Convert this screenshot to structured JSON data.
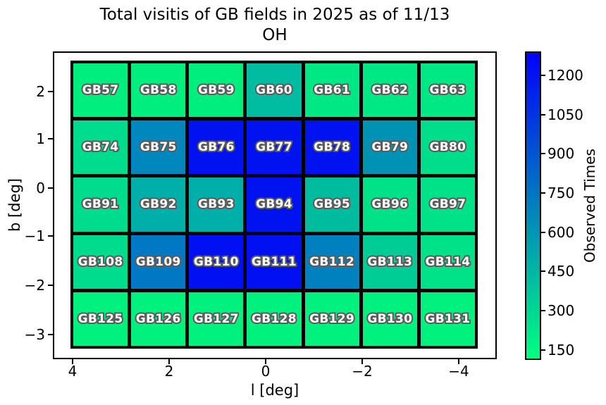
{
  "figure": {
    "title_line1": "Total visitis of GB fields in 2025 as of 11/13",
    "title_line2": "OH"
  },
  "axes": {
    "xlabel": "l [deg]",
    "ylabel": "b [deg]",
    "x_ticks": [
      "4",
      "2",
      "0",
      "−2",
      "−4"
    ],
    "y_ticks": [
      "2",
      "1",
      "0",
      "−1",
      "−2",
      "−3"
    ]
  },
  "colorbar": {
    "label": "Observed Times",
    "ticks": [
      "1200",
      "1050",
      "900",
      "750",
      "600",
      "450",
      "300",
      "150"
    ],
    "gradient_top_color": "#0101fb",
    "gradient_bottom_color": "#00ff80"
  },
  "chart_data": {
    "type": "heatmap",
    "title": "Total visitis of GB fields in 2025 as of 11/13 OH",
    "xlabel": "l [deg]",
    "ylabel": "b [deg]",
    "x_tick_labels": [
      4,
      2,
      0,
      -2,
      -4
    ],
    "y_tick_labels": [
      2,
      1,
      0,
      -1,
      -2,
      -3
    ],
    "colormap": "winter_r",
    "colorbar_label": "Observed Times",
    "colorbar_tick_values": [
      150,
      300,
      450,
      600,
      750,
      900,
      1050,
      1200
    ],
    "colorbar_range_estimate": [
      110,
      1290
    ],
    "values_are_estimated_from_colorbar": true,
    "rows": [
      {
        "b_approx": 2,
        "cells": [
          {
            "label": "GB57",
            "color": "#00ee7e",
            "observed_times_est": 190
          },
          {
            "label": "GB58",
            "color": "#00ee7e",
            "observed_times_est": 190
          },
          {
            "label": "GB59",
            "color": "#00ee7e",
            "observed_times_est": 190
          },
          {
            "label": "GB60",
            "color": "#00bda2",
            "observed_times_est": 415
          },
          {
            "label": "GB61",
            "color": "#00e884",
            "observed_times_est": 215
          },
          {
            "label": "GB62",
            "color": "#00e884",
            "observed_times_est": 215
          },
          {
            "label": "GB63",
            "color": "#00e884",
            "observed_times_est": 215
          }
        ]
      },
      {
        "b_approx": 1,
        "cells": [
          {
            "label": "GB74",
            "color": "#00dc8e",
            "observed_times_est": 270
          },
          {
            "label": "GB75",
            "color": "#0087be",
            "observed_times_est": 665
          },
          {
            "label": "GB76",
            "color": "#0012f0",
            "observed_times_est": 1210
          },
          {
            "label": "GB77",
            "color": "#0012f0",
            "observed_times_est": 1210
          },
          {
            "label": "GB78",
            "color": "#0012f0",
            "observed_times_est": 1210
          },
          {
            "label": "GB79",
            "color": "#0092b5",
            "observed_times_est": 615
          },
          {
            "label": "GB80",
            "color": "#00dd8b",
            "observed_times_est": 265
          }
        ]
      },
      {
        "b_approx": 0,
        "cells": [
          {
            "label": "GB91",
            "color": "#00dc8e",
            "observed_times_est": 270
          },
          {
            "label": "GB92",
            "color": "#00aeaa",
            "observed_times_est": 485
          },
          {
            "label": "GB93",
            "color": "#00aeaa",
            "observed_times_est": 485
          },
          {
            "label": "GB94",
            "color": "#0012f0",
            "observed_times_est": 1210
          },
          {
            "label": "GB95",
            "color": "#00bc9e",
            "observed_times_est": 420
          },
          {
            "label": "GB96",
            "color": "#00e288",
            "observed_times_est": 245
          },
          {
            "label": "GB97",
            "color": "#00e288",
            "observed_times_est": 245
          }
        ]
      },
      {
        "b_approx": -1.5,
        "cells": [
          {
            "label": "GB108",
            "color": "#00dc8e",
            "observed_times_est": 270
          },
          {
            "label": "GB109",
            "color": "#0078c4",
            "observed_times_est": 735
          },
          {
            "label": "GB110",
            "color": "#0010f2",
            "observed_times_est": 1215
          },
          {
            "label": "GB111",
            "color": "#0010f2",
            "observed_times_est": 1215
          },
          {
            "label": "GB112",
            "color": "#0081bf",
            "observed_times_est": 695
          },
          {
            "label": "GB113",
            "color": "#00cc95",
            "observed_times_est": 345
          },
          {
            "label": "GB114",
            "color": "#00e288",
            "observed_times_est": 245
          }
        ]
      },
      {
        "b_approx": -2.7,
        "cells": [
          {
            "label": "GB125",
            "color": "#00f17d",
            "observed_times_est": 175
          },
          {
            "label": "GB126",
            "color": "#00f17d",
            "observed_times_est": 175
          },
          {
            "label": "GB127",
            "color": "#00f17d",
            "observed_times_est": 175
          },
          {
            "label": "GB128",
            "color": "#00f17d",
            "observed_times_est": 175
          },
          {
            "label": "GB129",
            "color": "#00f17d",
            "observed_times_est": 175
          },
          {
            "label": "GB130",
            "color": "#00f17d",
            "observed_times_est": 175
          },
          {
            "label": "GB131",
            "color": "#00f17d",
            "observed_times_est": 175
          }
        ]
      }
    ]
  }
}
